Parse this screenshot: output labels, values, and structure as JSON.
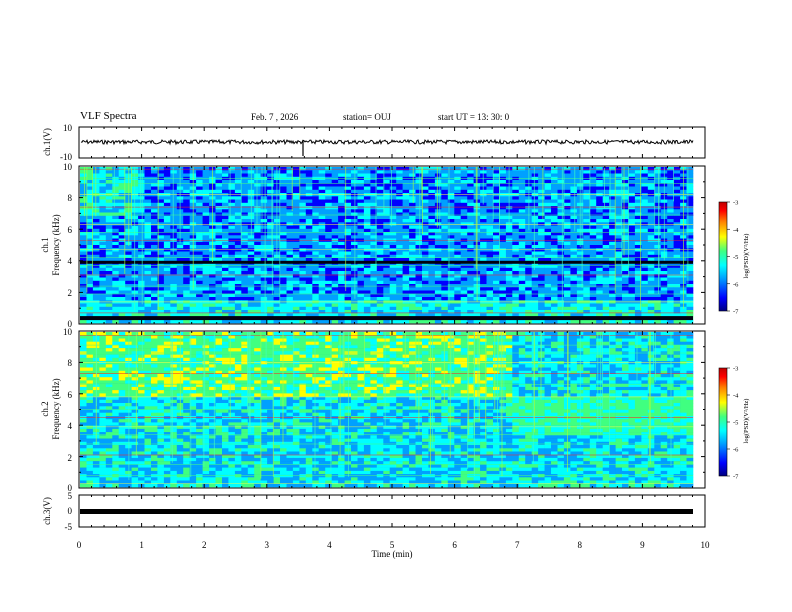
{
  "header": {
    "title": "VLF Spectra",
    "date": "Feb. 7 , 2026",
    "station": "station= OUJ",
    "start": "start UT = 13: 30: 0"
  },
  "colors": {
    "spectrum_scale": [
      "#000080",
      "#0000ff",
      "#00a0ff",
      "#00ffff",
      "#40ff80",
      "#ffff00",
      "#ff8000",
      "#ff0000",
      "#c00000"
    ]
  },
  "chart_data": [
    {
      "type": "line",
      "panel": "ch1-waveform",
      "ylabel": "ch.1(V)",
      "ytick_labels": [
        "10",
        "-10"
      ],
      "ylim": [
        -10,
        10
      ],
      "description_series": "noise waveform around 0 V"
    },
    {
      "type": "heatmap",
      "panel": "ch1-spectrogram",
      "ylabel_line1": "ch.1",
      "ylabel_line2": "Frequency (kHz)",
      "ytick_labels": [
        "10",
        "8",
        "6",
        "4",
        "2",
        "0"
      ],
      "ylim": [
        0,
        10
      ],
      "xlim": [
        0,
        10
      ],
      "colorbar": {
        "label": "log(PSD)(V²/Hz)",
        "ticks": [
          "-3",
          "-4",
          "-5",
          "-6",
          "-7"
        ],
        "range": [
          -7,
          -3
        ]
      }
    },
    {
      "type": "heatmap",
      "panel": "ch2-spectrogram",
      "ylabel_line1": "ch.2",
      "ylabel_line2": "Frequency (kHz)",
      "ytick_labels": [
        "10",
        "8",
        "6",
        "4",
        "2",
        "0"
      ],
      "ylim": [
        0,
        10
      ],
      "xlim": [
        0,
        10
      ],
      "colorbar": {
        "label": "log(PSD)(V²/Hz)",
        "ticks": [
          "-3",
          "-4",
          "-5",
          "-6",
          "-7"
        ],
        "range": [
          -7,
          -3
        ]
      }
    },
    {
      "type": "line",
      "panel": "ch3-waveform",
      "ylabel": "ch.3(V)",
      "ytick_labels": [
        "5",
        "0",
        "-5"
      ],
      "ylim": [
        -5,
        5
      ],
      "values_note": "constant",
      "constant_value": 0
    }
  ],
  "xaxis": {
    "label": "Time (min)",
    "tick_labels": [
      "0",
      "1",
      "2",
      "3",
      "4",
      "5",
      "6",
      "7",
      "8",
      "9",
      "10"
    ],
    "xlim": [
      0,
      10
    ]
  }
}
